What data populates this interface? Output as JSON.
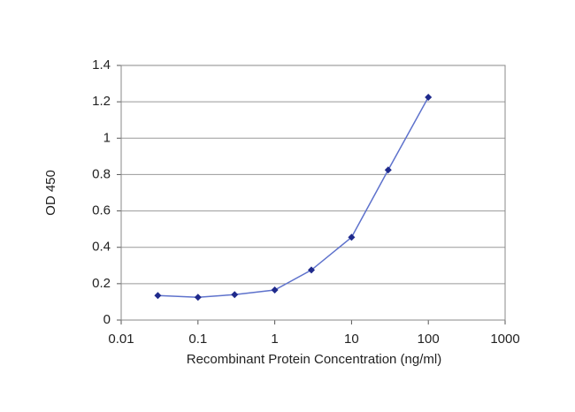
{
  "chart_data": {
    "type": "line",
    "xscale": "log",
    "xlabel": "Recombinant Protein Concentration (ng/ml)",
    "ylabel": "OD 450",
    "x": [
      0.03,
      0.1,
      0.3,
      1,
      3,
      10,
      30,
      100
    ],
    "values": [
      0.135,
      0.125,
      0.14,
      0.165,
      0.275,
      0.455,
      0.825,
      1.225
    ],
    "color": "#1f2a8c",
    "line_color": "#5e72cc",
    "xlim": [
      0.01,
      1000
    ],
    "xticks": [
      0.01,
      0.1,
      1,
      10,
      100,
      1000
    ],
    "ylim": [
      0,
      1.4
    ],
    "yticks": [
      0,
      0.2,
      0.4,
      0.6,
      0.8,
      1,
      1.2,
      1.4
    ],
    "grid": true
  }
}
